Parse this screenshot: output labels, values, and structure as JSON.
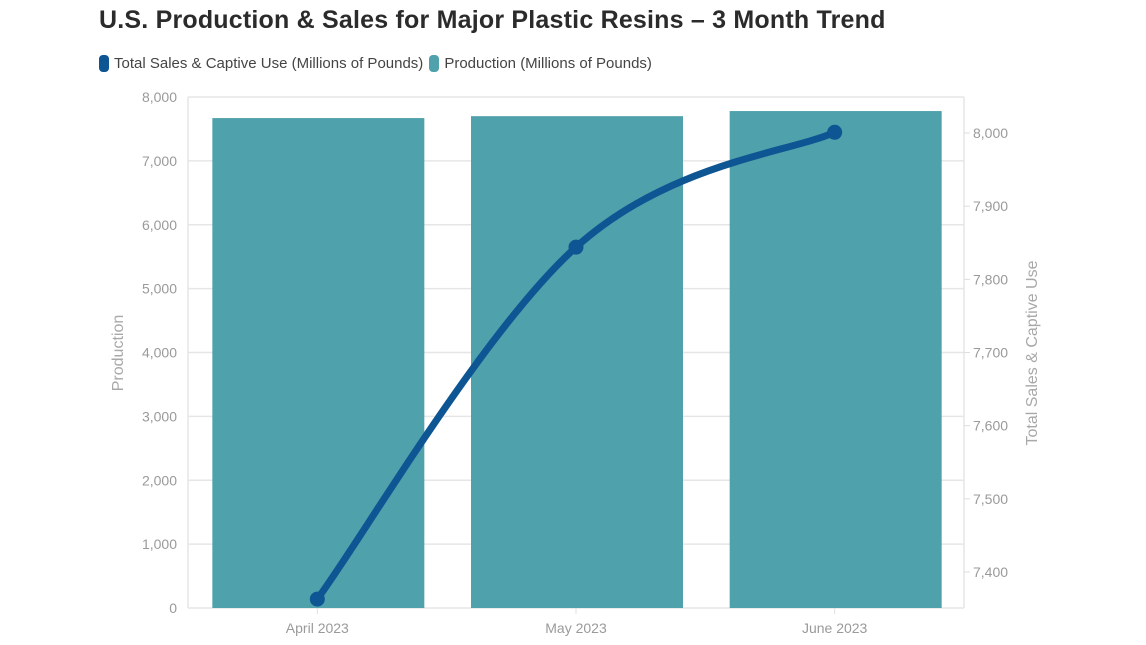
{
  "title": "U.S. Production & Sales for Major Plastic Resins – 3 Month Trend",
  "legend": [
    {
      "label": "Total Sales & Captive Use (Millions of Pounds)",
      "color": "#0e5593"
    },
    {
      "label": "Production (Millions of Pounds)",
      "color": "#4fa1ab"
    }
  ],
  "axes": {
    "left_title": "Production",
    "right_title": "Total Sales & Captive Use",
    "left_ticks": [
      "0",
      "1,000",
      "2,000",
      "3,000",
      "4,000",
      "5,000",
      "6,000",
      "7,000",
      "8,000"
    ],
    "right_ticks": [
      "7,400",
      "7,500",
      "7,600",
      "7,700",
      "7,800",
      "7,900",
      "8,000"
    ],
    "x_ticks": [
      "April 2023",
      "May 2023",
      "June 2023"
    ]
  },
  "chart_data": {
    "type": "bar",
    "title": "U.S. Production & Sales for Major Plastic Resins – 3 Month Trend",
    "categories": [
      "April 2023",
      "May 2023",
      "June 2023"
    ],
    "series": [
      {
        "name": "Production (Millions of Pounds)",
        "type": "bar",
        "axis": "left",
        "color": "#4fa1ab",
        "values": [
          7670,
          7700,
          7780
        ]
      },
      {
        "name": "Total Sales & Captive Use (Millions of Pounds)",
        "type": "line",
        "axis": "right",
        "color": "#0e5593",
        "values": [
          7363,
          7844,
          8001
        ]
      }
    ],
    "xlabel": "",
    "ylabel": "Production",
    "ylabel_right": "Total Sales & Captive Use",
    "ylim": [
      0,
      8000
    ],
    "ylim_right": [
      7350,
      8050
    ],
    "grid": true,
    "legend_position": "top-left"
  }
}
